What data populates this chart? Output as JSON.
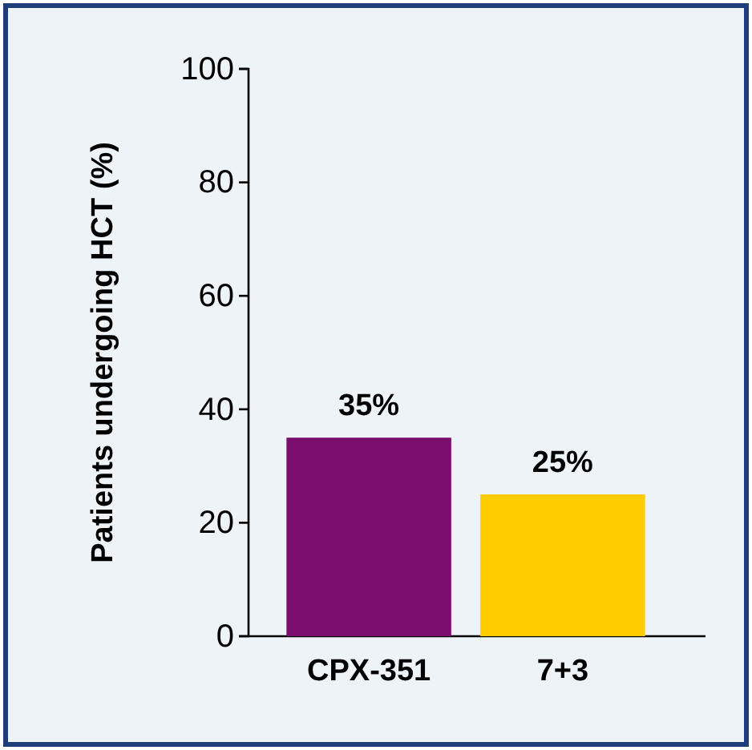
{
  "chart_data": {
    "type": "bar",
    "ylabel": "Patients undergoing HCT (%)",
    "categories": [
      "CPX-351",
      "7+3"
    ],
    "values": [
      35,
      25
    ],
    "colors": [
      "#7b0e6e",
      "#ffcc00"
    ],
    "value_labels": [
      "35%",
      "25%"
    ],
    "ylim": [
      0,
      100
    ],
    "yticks": [
      0,
      20,
      40,
      60,
      80,
      100
    ],
    "grid": false
  }
}
